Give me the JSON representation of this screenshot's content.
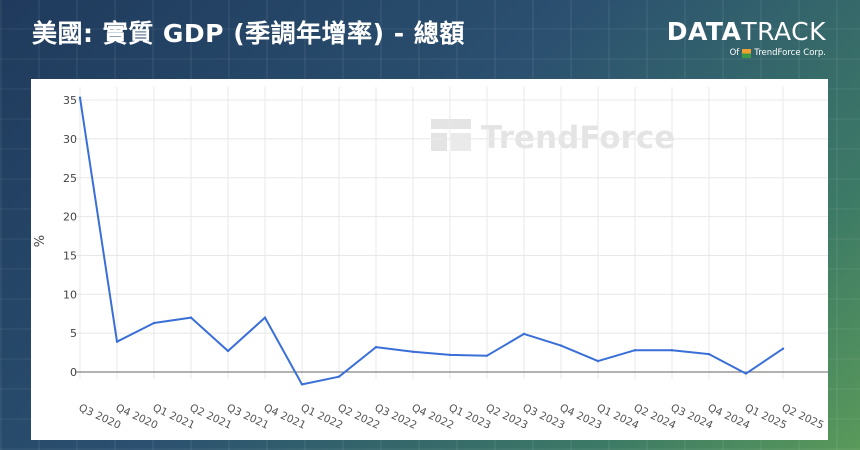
{
  "header": {
    "title": "美國: 實質 GDP (季調年增率) - 總額",
    "brand_main_bold": "DATA",
    "brand_main_light": "TRACK",
    "brand_of": "Of",
    "brand_corp": "TrendForce Corp."
  },
  "watermark": "TrendForce",
  "colors": {
    "line": "#3a6fd8",
    "grid": "#e8e8e8",
    "zero_line": "#666666",
    "background_panel": "#ffffff"
  },
  "chart_data": {
    "type": "line",
    "title": "美國: 實質 GDP (季調年增率) - 總額",
    "xlabel": "",
    "ylabel": "%",
    "ylim": [
      -2,
      35
    ],
    "yticks": [
      0,
      5,
      10,
      15,
      20,
      25,
      30,
      35
    ],
    "grid": true,
    "legend": "none",
    "categories": [
      "Q3 2020",
      "Q4 2020",
      "Q1 2021",
      "Q2 2021",
      "Q3 2021",
      "Q4 2021",
      "Q1 2022",
      "Q2 2022",
      "Q3 2022",
      "Q4 2022",
      "Q1 2023",
      "Q2 2023",
      "Q3 2023",
      "Q4 2023",
      "Q1 2024",
      "Q2 2024",
      "Q3 2024",
      "Q4 2024",
      "Q1 2025",
      "Q2 2025"
    ],
    "series": [
      {
        "values": [
          35.3,
          3.9,
          6.3,
          7.0,
          2.7,
          7.0,
          -1.6,
          -0.6,
          3.2,
          2.6,
          2.2,
          2.1,
          4.9,
          3.4,
          1.4,
          2.8,
          2.8,
          2.3,
          -0.2,
          3.0
        ]
      }
    ]
  }
}
